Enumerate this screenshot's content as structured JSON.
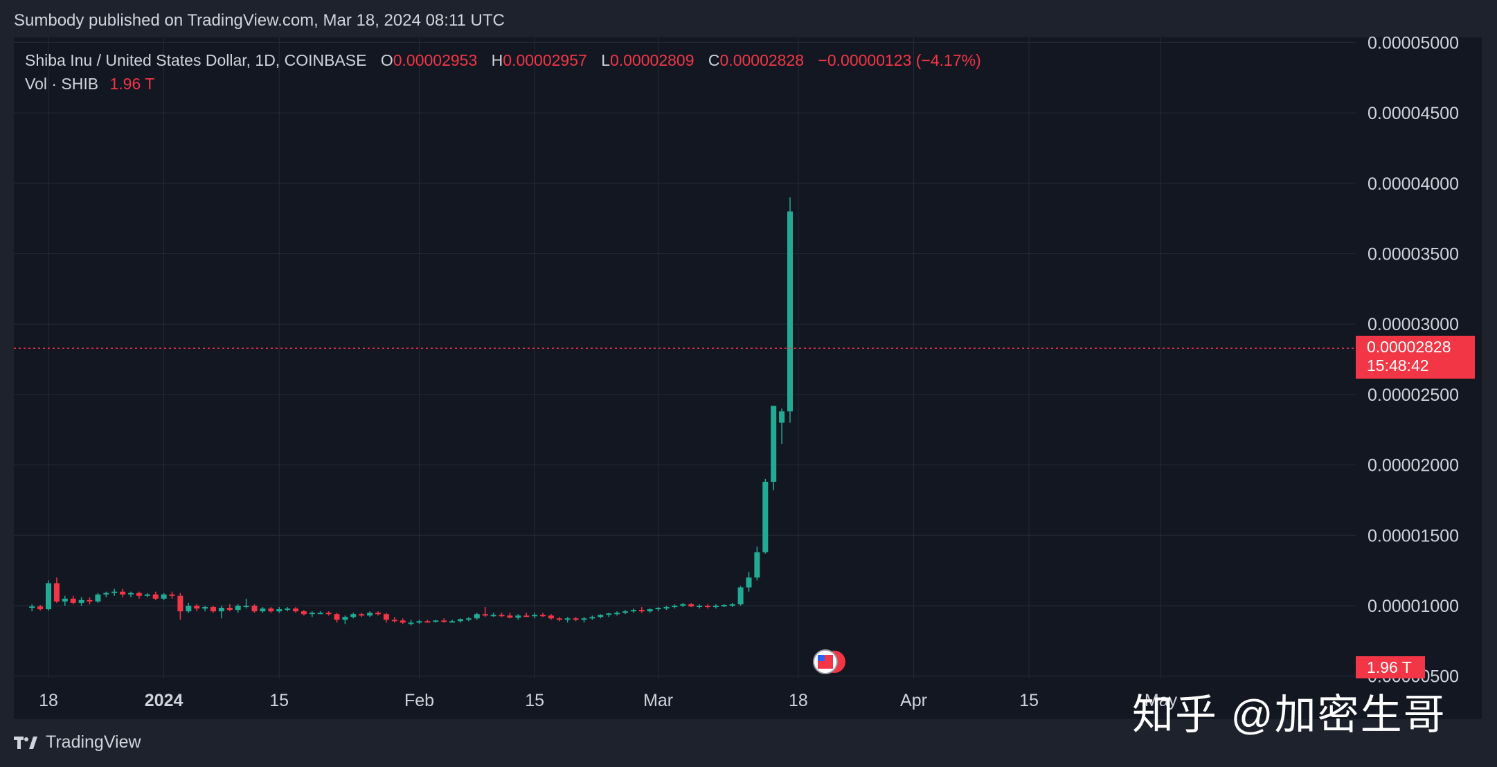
{
  "header": {
    "published": "Sumbody published on TradingView.com, Mar 18, 2024 08:11 UTC"
  },
  "legend": {
    "symbol": "Shiba Inu / United States Dollar, 1D, COINBASE",
    "o_label": "O",
    "o": "0.00002953",
    "h_label": "H",
    "h": "0.00002957",
    "l_label": "L",
    "l": "0.00002809",
    "c_label": "C",
    "c": "0.00002828",
    "change": "−0.00000123 (−4.17%)",
    "vol_label": "Vol · SHIB",
    "vol": "1.96 T"
  },
  "price_tag": {
    "price": "0.00002828",
    "countdown": "15:48:42"
  },
  "volume_tag": "1.96 T",
  "footer": {
    "brand": "TradingView"
  },
  "watermark": "知乎 @加密生哥",
  "colors": {
    "up": "#22ab94",
    "down": "#f23645",
    "background": "#131722",
    "grid": "#262a35",
    "text": "#d1d4dc"
  },
  "chart_data": {
    "type": "candlestick",
    "title": "Shiba Inu / United States Dollar, 1D, COINBASE",
    "y_ticks": [
      "0.00000500",
      "0.00001000",
      "0.00001500",
      "0.00002000",
      "0.00002500",
      "0.00003000",
      "0.00003500",
      "0.00004000",
      "0.00004500",
      "0.00005000"
    ],
    "x_ticks": [
      "18",
      "2024",
      "15",
      "Feb",
      "15",
      "Mar",
      "18",
      "Apr",
      "15",
      "May"
    ],
    "y_range": [
      4e-06,
      5e-05
    ],
    "last_price": 2.828e-05,
    "grid": true,
    "candles": [
      {
        "date": "2023-12-16",
        "o": 9.85e-06,
        "h": 1.01e-05,
        "l": 9.6e-06,
        "c": 9.95e-06
      },
      {
        "date": "2023-12-17",
        "o": 9.95e-06,
        "h": 1.005e-05,
        "l": 9.65e-06,
        "c": 9.75e-06
      },
      {
        "date": "2023-12-18",
        "o": 9.75e-06,
        "h": 1.18e-05,
        "l": 9.65e-06,
        "c": 1.16e-05
      },
      {
        "date": "2023-12-19",
        "o": 1.16e-05,
        "h": 1.2e-05,
        "l": 1.02e-05,
        "c": 1.03e-05
      },
      {
        "date": "2023-12-20",
        "o": 1.03e-05,
        "h": 1.07e-05,
        "l": 1e-05,
        "c": 1.05e-05
      },
      {
        "date": "2023-12-21",
        "o": 1.05e-05,
        "h": 1.07e-05,
        "l": 1.01e-05,
        "c": 1.02e-05
      },
      {
        "date": "2023-12-22",
        "o": 1.02e-05,
        "h": 1.06e-05,
        "l": 1e-05,
        "c": 1.04e-05
      },
      {
        "date": "2023-12-23",
        "o": 1.04e-05,
        "h": 1.06e-05,
        "l": 1.01e-05,
        "c": 1.03e-05
      },
      {
        "date": "2023-12-24",
        "o": 1.03e-05,
        "h": 1.09e-05,
        "l": 1.02e-05,
        "c": 1.08e-05
      },
      {
        "date": "2023-12-25",
        "o": 1.08e-05,
        "h": 1.1e-05,
        "l": 1.06e-05,
        "c": 1.09e-05
      },
      {
        "date": "2023-12-26",
        "o": 1.09e-05,
        "h": 1.12e-05,
        "l": 1.07e-05,
        "c": 1.1e-05
      },
      {
        "date": "2023-12-27",
        "o": 1.1e-05,
        "h": 1.12e-05,
        "l": 1.06e-05,
        "c": 1.08e-05
      },
      {
        "date": "2023-12-28",
        "o": 1.08e-05,
        "h": 1.1e-05,
        "l": 1.06e-05,
        "c": 1.09e-05
      },
      {
        "date": "2023-12-29",
        "o": 1.09e-05,
        "h": 1.1e-05,
        "l": 1.05e-05,
        "c": 1.07e-05
      },
      {
        "date": "2023-12-30",
        "o": 1.07e-05,
        "h": 1.09e-05,
        "l": 1.06e-05,
        "c": 1.08e-05
      },
      {
        "date": "2023-12-31",
        "o": 1.08e-05,
        "h": 1.1e-05,
        "l": 1.04e-05,
        "c": 1.05e-05
      },
      {
        "date": "2024-01-01",
        "o": 1.05e-05,
        "h": 1.09e-05,
        "l": 1.04e-05,
        "c": 1.08e-05
      },
      {
        "date": "2024-01-02",
        "o": 1.08e-05,
        "h": 1.1e-05,
        "l": 1.05e-05,
        "c": 1.07e-05
      },
      {
        "date": "2024-01-03",
        "o": 1.07e-05,
        "h": 1.09e-05,
        "l": 9e-06,
        "c": 9.6e-06
      },
      {
        "date": "2024-01-04",
        "o": 9.6e-06,
        "h": 1.02e-05,
        "l": 9.5e-06,
        "c": 1e-05
      },
      {
        "date": "2024-01-05",
        "o": 1e-05,
        "h": 1.01e-05,
        "l": 9.6e-06,
        "c": 9.8e-06
      },
      {
        "date": "2024-01-06",
        "o": 9.8e-06,
        "h": 1e-05,
        "l": 9.6e-06,
        "c": 9.9e-06
      },
      {
        "date": "2024-01-07",
        "o": 9.9e-06,
        "h": 1e-05,
        "l": 9.5e-06,
        "c": 9.6e-06
      },
      {
        "date": "2024-01-08",
        "o": 9.6e-06,
        "h": 1e-05,
        "l": 9.1e-06,
        "c": 9.85e-06
      },
      {
        "date": "2024-01-09",
        "o": 9.85e-06,
        "h": 1.01e-05,
        "l": 9.6e-06,
        "c": 9.7e-06
      },
      {
        "date": "2024-01-10",
        "o": 9.7e-06,
        "h": 1.01e-05,
        "l": 9.5e-06,
        "c": 1e-05
      },
      {
        "date": "2024-01-11",
        "o": 1e-05,
        "h": 1.05e-05,
        "l": 9.8e-06,
        "c": 1e-05
      },
      {
        "date": "2024-01-12",
        "o": 1e-05,
        "h": 1.01e-05,
        "l": 9.5e-06,
        "c": 9.6e-06
      },
      {
        "date": "2024-01-13",
        "o": 9.6e-06,
        "h": 9.9e-06,
        "l": 9.5e-06,
        "c": 9.8e-06
      },
      {
        "date": "2024-01-14",
        "o": 9.8e-06,
        "h": 9.9e-06,
        "l": 9.5e-06,
        "c": 9.6e-06
      },
      {
        "date": "2024-01-15",
        "o": 9.6e-06,
        "h": 9.9e-06,
        "l": 9.5e-06,
        "c": 9.75e-06
      },
      {
        "date": "2024-01-16",
        "o": 9.75e-06,
        "h": 9.9e-06,
        "l": 9.6e-06,
        "c": 9.8e-06
      },
      {
        "date": "2024-01-17",
        "o": 9.8e-06,
        "h": 9.9e-06,
        "l": 9.5e-06,
        "c": 9.6e-06
      },
      {
        "date": "2024-01-18",
        "o": 9.6e-06,
        "h": 9.7e-06,
        "l": 9.3e-06,
        "c": 9.4e-06
      },
      {
        "date": "2024-01-19",
        "o": 9.4e-06,
        "h": 9.6e-06,
        "l": 9.2e-06,
        "c": 9.5e-06
      },
      {
        "date": "2024-01-20",
        "o": 9.5e-06,
        "h": 9.6e-06,
        "l": 9.4e-06,
        "c": 9.5e-06
      },
      {
        "date": "2024-01-21",
        "o": 9.5e-06,
        "h": 9.6e-06,
        "l": 9.3e-06,
        "c": 9.4e-06
      },
      {
        "date": "2024-01-22",
        "o": 9.4e-06,
        "h": 9.5e-06,
        "l": 8.8e-06,
        "c": 9e-06
      },
      {
        "date": "2024-01-23",
        "o": 9e-06,
        "h": 9.3e-06,
        "l": 8.7e-06,
        "c": 9.2e-06
      },
      {
        "date": "2024-01-24",
        "o": 9.2e-06,
        "h": 9.5e-06,
        "l": 9.1e-06,
        "c": 9.4e-06
      },
      {
        "date": "2024-01-25",
        "o": 9.4e-06,
        "h": 9.5e-06,
        "l": 9.2e-06,
        "c": 9.3e-06
      },
      {
        "date": "2024-01-26",
        "o": 9.3e-06,
        "h": 9.6e-06,
        "l": 9.2e-06,
        "c": 9.5e-06
      },
      {
        "date": "2024-01-27",
        "o": 9.5e-06,
        "h": 9.6e-06,
        "l": 9.3e-06,
        "c": 9.4e-06
      },
      {
        "date": "2024-01-28",
        "o": 9.4e-06,
        "h": 9.5e-06,
        "l": 8.8e-06,
        "c": 9e-06
      },
      {
        "date": "2024-01-29",
        "o": 9e-06,
        "h": 9.2e-06,
        "l": 8.8e-06,
        "c": 8.95e-06
      },
      {
        "date": "2024-01-30",
        "o": 8.95e-06,
        "h": 9.1e-06,
        "l": 8.7e-06,
        "c": 8.8e-06
      },
      {
        "date": "2024-01-31",
        "o": 8.8e-06,
        "h": 9e-06,
        "l": 8.6e-06,
        "c": 8.8e-06
      },
      {
        "date": "2024-02-01",
        "o": 8.8e-06,
        "h": 9e-06,
        "l": 8.7e-06,
        "c": 8.9e-06
      },
      {
        "date": "2024-02-02",
        "o": 8.9e-06,
        "h": 9e-06,
        "l": 8.8e-06,
        "c": 8.85e-06
      },
      {
        "date": "2024-02-03",
        "o": 8.85e-06,
        "h": 9e-06,
        "l": 8.8e-06,
        "c": 8.95e-06
      },
      {
        "date": "2024-02-04",
        "o": 8.95e-06,
        "h": 9.1e-06,
        "l": 8.8e-06,
        "c": 8.9e-06
      },
      {
        "date": "2024-02-05",
        "o": 8.9e-06,
        "h": 9e-06,
        "l": 8.8e-06,
        "c": 8.9e-06
      },
      {
        "date": "2024-02-06",
        "o": 8.9e-06,
        "h": 9.1e-06,
        "l": 8.8e-06,
        "c": 9.05e-06
      },
      {
        "date": "2024-02-07",
        "o": 9.05e-06,
        "h": 9.2e-06,
        "l": 8.9e-06,
        "c": 9.1e-06
      },
      {
        "date": "2024-02-08",
        "o": 9.1e-06,
        "h": 9.5e-06,
        "l": 9e-06,
        "c": 9.4e-06
      },
      {
        "date": "2024-02-09",
        "o": 9.4e-06,
        "h": 9.9e-06,
        "l": 9.2e-06,
        "c": 9.3e-06
      },
      {
        "date": "2024-02-10",
        "o": 9.3e-06,
        "h": 9.5e-06,
        "l": 9.2e-06,
        "c": 9.35e-06
      },
      {
        "date": "2024-02-11",
        "o": 9.35e-06,
        "h": 9.5e-06,
        "l": 9.2e-06,
        "c": 9.3e-06
      },
      {
        "date": "2024-02-12",
        "o": 9.3e-06,
        "h": 9.5e-06,
        "l": 9.1e-06,
        "c": 9.15e-06
      },
      {
        "date": "2024-02-13",
        "o": 9.15e-06,
        "h": 9.4e-06,
        "l": 9e-06,
        "c": 9.3e-06
      },
      {
        "date": "2024-02-14",
        "o": 9.3e-06,
        "h": 9.5e-06,
        "l": 9.2e-06,
        "c": 9.25e-06
      },
      {
        "date": "2024-02-15",
        "o": 9.25e-06,
        "h": 9.5e-06,
        "l": 9.1e-06,
        "c": 9.35e-06
      },
      {
        "date": "2024-02-16",
        "o": 9.35e-06,
        "h": 9.5e-06,
        "l": 9.2e-06,
        "c": 9.3e-06
      },
      {
        "date": "2024-02-17",
        "o": 9.3e-06,
        "h": 9.4e-06,
        "l": 9e-06,
        "c": 9.1e-06
      },
      {
        "date": "2024-02-18",
        "o": 9.1e-06,
        "h": 9.2e-06,
        "l": 8.9e-06,
        "c": 9e-06
      },
      {
        "date": "2024-02-19",
        "o": 9e-06,
        "h": 9.2e-06,
        "l": 8.8e-06,
        "c": 9.1e-06
      },
      {
        "date": "2024-02-20",
        "o": 9.1e-06,
        "h": 9.2e-06,
        "l": 8.9e-06,
        "c": 9e-06
      },
      {
        "date": "2024-02-21",
        "o": 9e-06,
        "h": 9.2e-06,
        "l": 8.8e-06,
        "c": 9.1e-06
      },
      {
        "date": "2024-02-22",
        "o": 9.1e-06,
        "h": 9.3e-06,
        "l": 9e-06,
        "c": 9.2e-06
      },
      {
        "date": "2024-02-23",
        "o": 9.2e-06,
        "h": 9.4e-06,
        "l": 9.1e-06,
        "c": 9.35e-06
      },
      {
        "date": "2024-02-24",
        "o": 9.35e-06,
        "h": 9.5e-06,
        "l": 9.2e-06,
        "c": 9.45e-06
      },
      {
        "date": "2024-02-25",
        "o": 9.45e-06,
        "h": 9.6e-06,
        "l": 9.3e-06,
        "c": 9.5e-06
      },
      {
        "date": "2024-02-26",
        "o": 9.5e-06,
        "h": 9.7e-06,
        "l": 9.4e-06,
        "c": 9.6e-06
      },
      {
        "date": "2024-02-27",
        "o": 9.6e-06,
        "h": 9.8e-06,
        "l": 9.5e-06,
        "c": 9.7e-06
      },
      {
        "date": "2024-02-28",
        "o": 9.7e-06,
        "h": 9.9e-06,
        "l": 9.5e-06,
        "c": 9.6e-06
      },
      {
        "date": "2024-02-29",
        "o": 9.6e-06,
        "h": 9.8e-06,
        "l": 9.5e-06,
        "c": 9.75e-06
      },
      {
        "date": "2024-03-01",
        "o": 9.75e-06,
        "h": 9.9e-06,
        "l": 9.6e-06,
        "c": 9.85e-06
      },
      {
        "date": "2024-03-02",
        "o": 9.85e-06,
        "h": 1e-05,
        "l": 9.7e-06,
        "c": 9.9e-06
      },
      {
        "date": "2024-03-03",
        "o": 9.9e-06,
        "h": 1.01e-05,
        "l": 9.8e-06,
        "c": 1e-05
      },
      {
        "date": "2024-03-04",
        "o": 1e-05,
        "h": 1.02e-05,
        "l": 9.9e-06,
        "c": 1.01e-05
      },
      {
        "date": "2024-03-05",
        "o": 1.01e-05,
        "h": 1.02e-05,
        "l": 9.9e-06,
        "c": 9.95e-06
      },
      {
        "date": "2024-03-06",
        "o": 9.95e-06,
        "h": 1.01e-05,
        "l": 9.8e-06,
        "c": 1e-05
      },
      {
        "date": "2024-03-07",
        "o": 1e-05,
        "h": 1.01e-05,
        "l": 9.8e-06,
        "c": 9.9e-06
      },
      {
        "date": "2024-03-08",
        "o": 9.9e-06,
        "h": 1.01e-05,
        "l": 9.8e-06,
        "c": 1e-05
      },
      {
        "date": "2024-03-09",
        "o": 1e-05,
        "h": 1.01e-05,
        "l": 9.9e-06,
        "c": 1.005e-05
      },
      {
        "date": "2024-03-10",
        "o": 1.005e-05,
        "h": 1.02e-05,
        "l": 9.9e-06,
        "c": 1.01e-05
      },
      {
        "date": "2024-03-11",
        "o": 1.01e-05,
        "h": 1.14e-05,
        "l": 1e-05,
        "c": 1.13e-05
      },
      {
        "date": "2024-03-12",
        "o": 1.13e-05,
        "h": 1.24e-05,
        "l": 1.1e-05,
        "c": 1.2e-05
      },
      {
        "date": "2024-03-13",
        "o": 1.2e-05,
        "h": 1.42e-05,
        "l": 1.18e-05,
        "c": 1.38e-05
      },
      {
        "date": "2024-03-14",
        "o": 1.38e-05,
        "h": 1.9e-05,
        "l": 1.37e-05,
        "c": 1.88e-05
      },
      {
        "date": "2024-03-15",
        "o": 1.88e-05,
        "h": 2.38e-05,
        "l": 1.82e-05,
        "c": 2.42e-05
      },
      {
        "date": "2024-03-16",
        "o": 2.3e-05,
        "h": 2.4e-05,
        "l": 2.15e-05,
        "c": 2.38e-05
      },
      {
        "date": "2024-03-17",
        "o": 2.38e-05,
        "h": 3.9e-05,
        "l": 2.3e-05,
        "c": 3.8e-05
      }
    ],
    "volume": []
  }
}
